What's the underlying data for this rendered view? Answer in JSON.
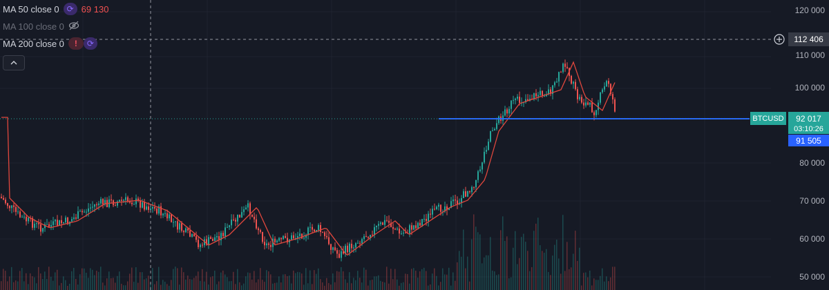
{
  "legend": {
    "ma50": {
      "label": "MA 50 close 0",
      "value": "69 130"
    },
    "ma100": {
      "label": "MA 100 close 0"
    },
    "ma200": {
      "label": "MA 200 close 0",
      "warning": "!"
    },
    "collapse_icon": "chevron-up-icon"
  },
  "price_axis": {
    "ticks": [
      "120 000",
      "110 000",
      "100 000",
      "80 000",
      "70 000",
      "60 000",
      "50 000"
    ]
  },
  "crosshair": {
    "price": "112 406",
    "add_icon": "plus-circle-icon"
  },
  "symbol": {
    "name": "BTCUSD",
    "price": "92 017",
    "countdown": "03:10:26"
  },
  "horizontal_line": {
    "price": "91 505"
  },
  "colors": {
    "background": "#161a25",
    "up_candle": "#26a69a",
    "down_candle": "#ef5350",
    "ma_line": "#e0473d",
    "horizontal_line": "#2962ff",
    "symbol_tag": "#26a69a",
    "line_tag": "#2962ff"
  }
}
